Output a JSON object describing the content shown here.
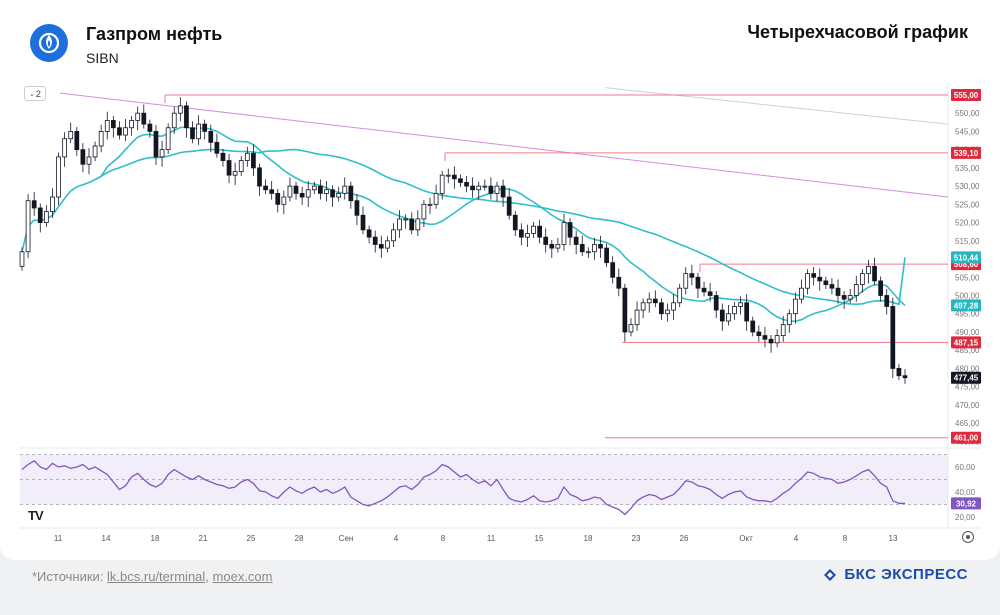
{
  "header": {
    "company": "Газпром нефть",
    "ticker": "SIBN",
    "chart_title": "Четырехчасовой график"
  },
  "interval_button": "2",
  "footer": {
    "source_prefix": "*Источники: ",
    "source_link_1": "lk.bcs.ru/terminal",
    "source_sep": ", ",
    "source_link_2": "moex.com",
    "brand": "БКС ЭКСПРЕСС"
  },
  "colors": {
    "candle": "#131722",
    "ma_fast": "#2ebfca",
    "ma_slow": "#2ebfca",
    "downtrend": "#cf8fe0",
    "level": "#f27a8a",
    "rsi": "#7e57c2",
    "label_red": "#e0293c",
    "label_teal": "#26b6c2",
    "label_dark": "#131722",
    "brand": "#1b4aa8",
    "logo": "#1e6fd9"
  },
  "chart_data": {
    "type": "candlestick",
    "price_axis_ticks": [
      555,
      550,
      545,
      540,
      535,
      530,
      525,
      520,
      515,
      510,
      505,
      500,
      495,
      490,
      485,
      480,
      475,
      470,
      465,
      460
    ],
    "ylim": [
      459,
      558
    ],
    "x_tick_labels": [
      "11",
      "14",
      "18",
      "21",
      "25",
      "28",
      "Сен",
      "4",
      "8",
      "11",
      "15",
      "18",
      "23",
      "26",
      "Окт",
      "4",
      "8",
      "13"
    ],
    "price_series_close": [
      512,
      526,
      524,
      520,
      523,
      527,
      538,
      543,
      545,
      540,
      536,
      538,
      541,
      545,
      548,
      546,
      544,
      546,
      548,
      550,
      547,
      545,
      538,
      540,
      546,
      550,
      552,
      546,
      543,
      547,
      545,
      542,
      539,
      537,
      533,
      534,
      537,
      539,
      535,
      530,
      529,
      528,
      525,
      527,
      530,
      528,
      527,
      529,
      530,
      528,
      529,
      527,
      528,
      530,
      526,
      522,
      518,
      516,
      514,
      513,
      515,
      518,
      521,
      521,
      518,
      521,
      525,
      525,
      528,
      533,
      533,
      532,
      531,
      530,
      529,
      530,
      530,
      528,
      530,
      527,
      522,
      518,
      516,
      517,
      519,
      516,
      514,
      513,
      514,
      520,
      516,
      514,
      512,
      512,
      514,
      513,
      509,
      505,
      502,
      490,
      492,
      496,
      498,
      499,
      498,
      495,
      496,
      498,
      502,
      506,
      505,
      502,
      501,
      500,
      496,
      493,
      495,
      497,
      498,
      493,
      490,
      489,
      488,
      487,
      489,
      492,
      495,
      499,
      502,
      506,
      505,
      504,
      503,
      502,
      500,
      499,
      500,
      503,
      506,
      508,
      504,
      500,
      497,
      480,
      478,
      477.45
    ],
    "ma_fast_last": 497.28,
    "ma_slow_last": 510.44,
    "last_price": 477.45,
    "resistance_levels": [
      555.0,
      539.1,
      508.6
    ],
    "support_levels": [
      487.15,
      461.0
    ],
    "rsi": {
      "ticks": [
        60,
        40,
        20
      ],
      "ylim": [
        16,
        72
      ],
      "upper_band": 70,
      "lower_band": 30,
      "mid": 50,
      "last": 30.92,
      "values": [
        58,
        62,
        65,
        60,
        58,
        63,
        60,
        61,
        59,
        60,
        62,
        58,
        60,
        57,
        54,
        48,
        42,
        45,
        52,
        55,
        50,
        46,
        44,
        47,
        54,
        58,
        55,
        52,
        50,
        53,
        50,
        48,
        46,
        45,
        43,
        44,
        48,
        50,
        47,
        41,
        40,
        37,
        35,
        40,
        44,
        41,
        39,
        42,
        44,
        40,
        42,
        39,
        41,
        44,
        36,
        33,
        30,
        29,
        31,
        33,
        36,
        40,
        44,
        45,
        42,
        46,
        52,
        54,
        57,
        62,
        60,
        56,
        52,
        54,
        50,
        47,
        49,
        45,
        50,
        42,
        35,
        33,
        32,
        34,
        37,
        33,
        32,
        33,
        35,
        44,
        38,
        36,
        33,
        34,
        36,
        35,
        30,
        28,
        26,
        22,
        27,
        33,
        36,
        38,
        37,
        34,
        36,
        38,
        43,
        49,
        48,
        45,
        44,
        42,
        38,
        35,
        38,
        40,
        41,
        36,
        34,
        33,
        33,
        32,
        35,
        39,
        42,
        47,
        51,
        56,
        55,
        52,
        51,
        50,
        47,
        48,
        50,
        53,
        56,
        58,
        53,
        47,
        44,
        33,
        31,
        30.92
      ]
    }
  }
}
